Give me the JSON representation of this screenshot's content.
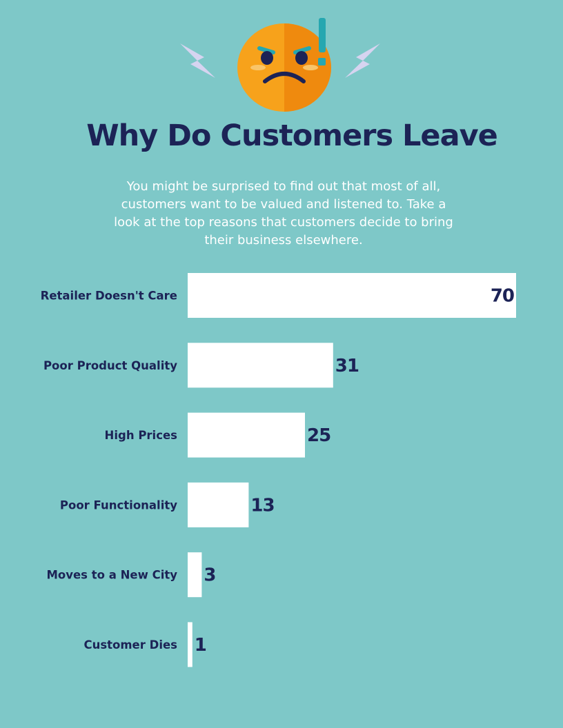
{
  "header": {
    "title": "Why Do Customers Leave",
    "subtitle": "You might be surprised to find out that most of all, customers want to be valued and listened to. Take a look at the top reasons that customers decide to bring their business elsewhere."
  },
  "illustration": {
    "name": "angry-face-icon",
    "accents": [
      "lightning-bolt-icon",
      "exclamation-icon"
    ]
  },
  "colors": {
    "background": "#7ec8c8",
    "bar": "#ffffff",
    "text_dark": "#1c2356",
    "face_orange": "#f7a21b",
    "face_dark_orange": "#ef8a0e",
    "lightning": "#d6d4f0",
    "accent_teal": "#26a7b0"
  },
  "chart_data": {
    "type": "bar",
    "orientation": "horizontal",
    "categories": [
      "Retailer Doesn't Care",
      "Poor Product Quality",
      "High Prices",
      "Poor Functionality",
      "Moves to a New City",
      "Customer Dies"
    ],
    "values": [
      70,
      31,
      25,
      13,
      3,
      1
    ],
    "title": "Why Do Customers Leave",
    "xlabel": "",
    "ylabel": "",
    "xlim": [
      0,
      70
    ],
    "grid": false,
    "legend": "none"
  }
}
